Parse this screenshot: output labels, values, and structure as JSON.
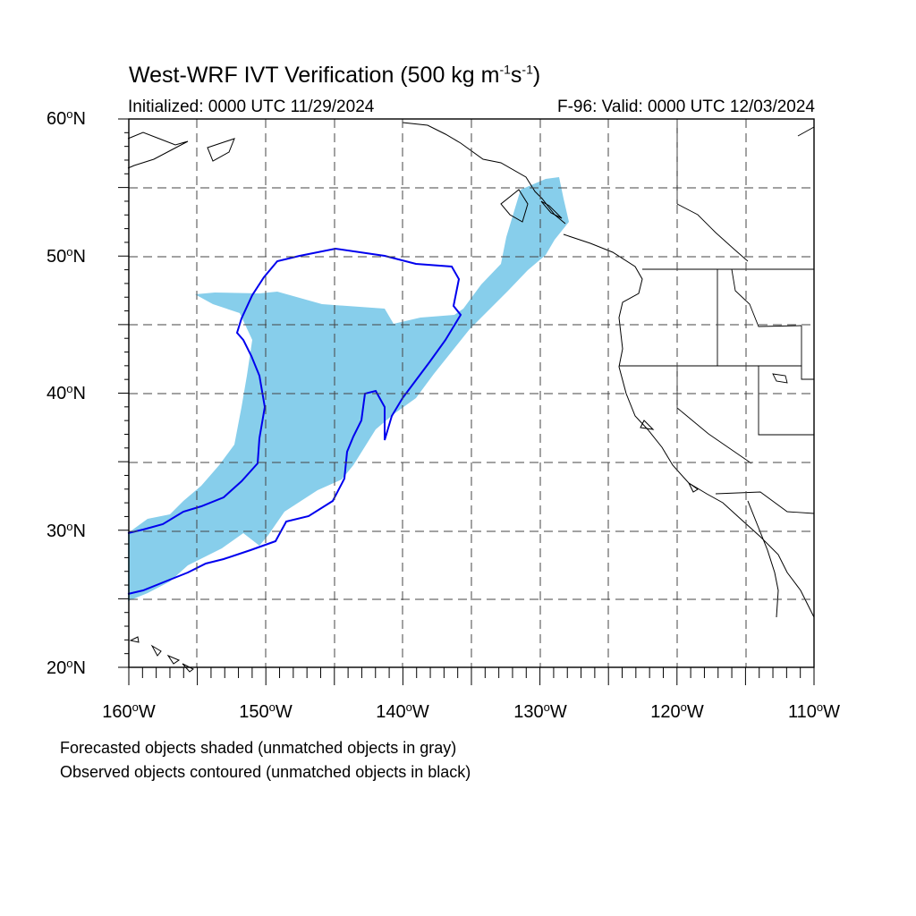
{
  "title": {
    "main": "West-WRF IVT Verification (500 kg m",
    "sup1": "-1",
    "mid": "s",
    "sup2": "-1",
    "end": ")"
  },
  "initialized": "Initialized: 0000 UTC 11/29/2024",
  "valid": "F-96: Valid: 0000 UTC 12/03/2024",
  "lat_labels": [
    {
      "deg": "60",
      "hemi": "N"
    },
    {
      "deg": "50",
      "hemi": "N"
    },
    {
      "deg": "40",
      "hemi": "N"
    },
    {
      "deg": "30",
      "hemi": "N"
    },
    {
      "deg": "20",
      "hemi": "N"
    }
  ],
  "lon_labels": [
    {
      "deg": "160",
      "hemi": "W"
    },
    {
      "deg": "150",
      "hemi": "W"
    },
    {
      "deg": "140",
      "hemi": "W"
    },
    {
      "deg": "130",
      "hemi": "W"
    },
    {
      "deg": "120",
      "hemi": "W"
    },
    {
      "deg": "110",
      "hemi": "W"
    }
  ],
  "notes": [
    "Forecasted objects shaded (unmatched objects in gray)",
    "Observed objects contoured (unmatched objects in black)"
  ],
  "colors": {
    "forecast_fill": "#87ceeb",
    "observed_contour": "#0000ee",
    "coastline": "#000000",
    "grid": "#444444"
  },
  "map_extent": {
    "lon": [
      -160,
      -110
    ],
    "lat": [
      20,
      60
    ]
  }
}
